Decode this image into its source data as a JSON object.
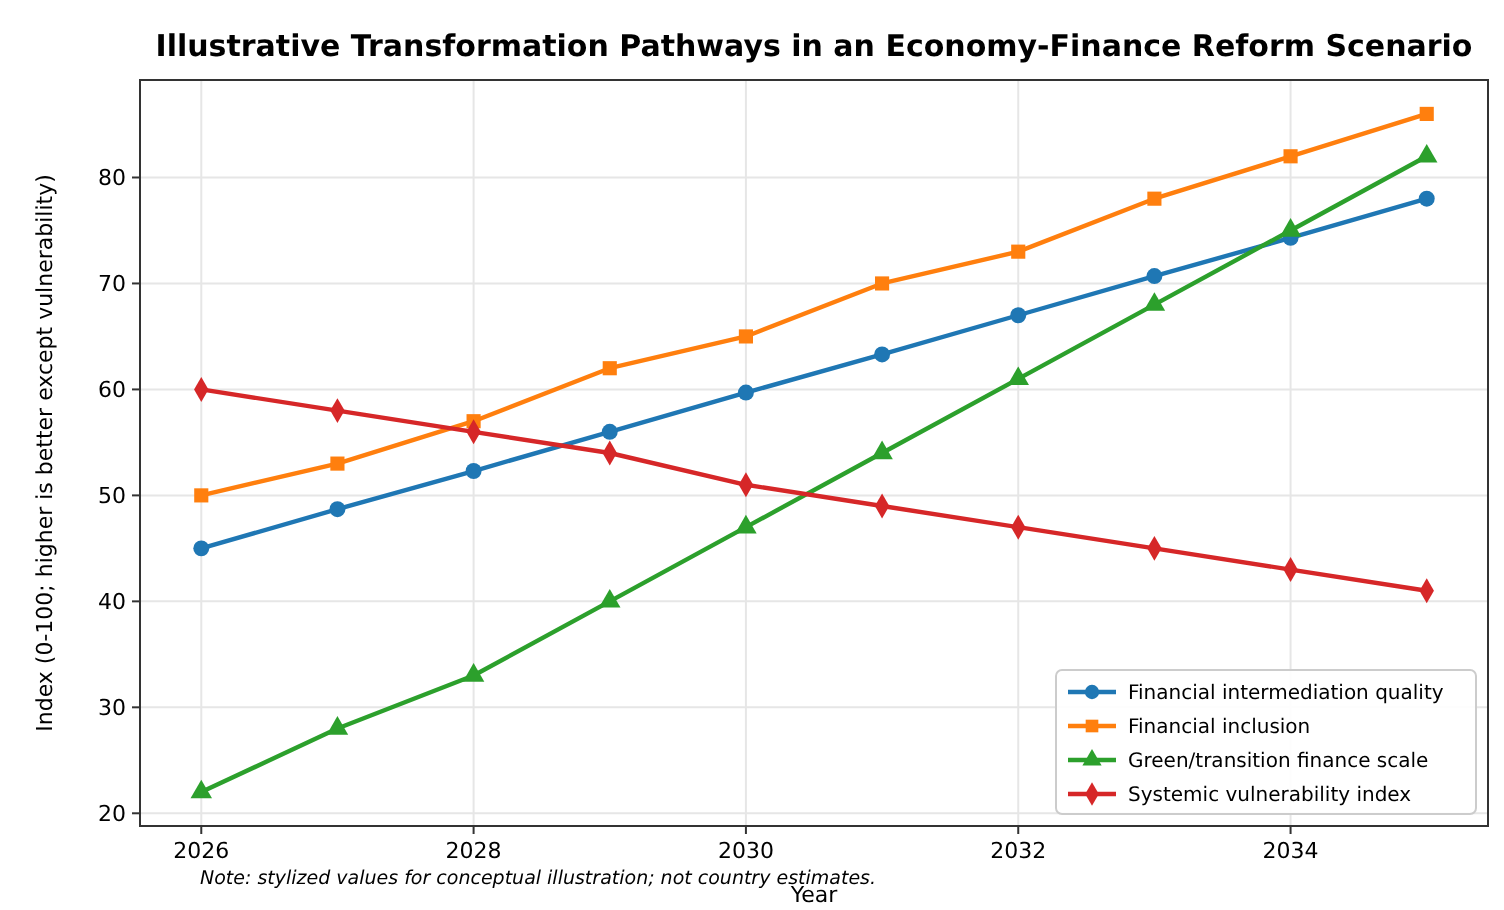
{
  "chart_data": {
    "type": "line",
    "title": "Illustrative Transformation Pathways in an Economy-Finance Reform Scenario",
    "xlabel": "Year",
    "ylabel": "Index (0-100; higher is better except vulnerability)",
    "x": [
      2026,
      2027,
      2028,
      2029,
      2030,
      2031,
      2032,
      2033,
      2034,
      2035
    ],
    "xlim": [
      2025.55,
      2035.45
    ],
    "xticks": [
      2026,
      2028,
      2030,
      2032,
      2034
    ],
    "ylim": [
      18.8,
      89.2
    ],
    "yticks": [
      20,
      30,
      40,
      50,
      60,
      70,
      80
    ],
    "grid": true,
    "legend": "bottom right",
    "line_style": "solid",
    "series": [
      {
        "name": "Financial intermediation quality",
        "color": "#1f77b4",
        "marker": "circle",
        "values": [
          45,
          48.7,
          52.3,
          56,
          59.7,
          63.3,
          67,
          70.7,
          74.3,
          78
        ]
      },
      {
        "name": "Financial inclusion",
        "color": "#ff7f0e",
        "marker": "square",
        "values": [
          50,
          53,
          57,
          62,
          65,
          70,
          73,
          78,
          82,
          86
        ]
      },
      {
        "name": "Green/transition finance scale",
        "color": "#2ca02c",
        "marker": "triangle",
        "values": [
          22,
          28,
          33,
          40,
          47,
          54,
          61,
          68,
          75,
          82
        ]
      },
      {
        "name": "Systemic vulnerability index",
        "color": "#d62728",
        "marker": "diamond",
        "values": [
          60,
          58,
          56,
          54,
          51,
          49,
          47,
          45,
          43,
          41
        ]
      }
    ],
    "annotations": [
      "Note: stylized values for conceptual illustration; not country estimates."
    ]
  }
}
